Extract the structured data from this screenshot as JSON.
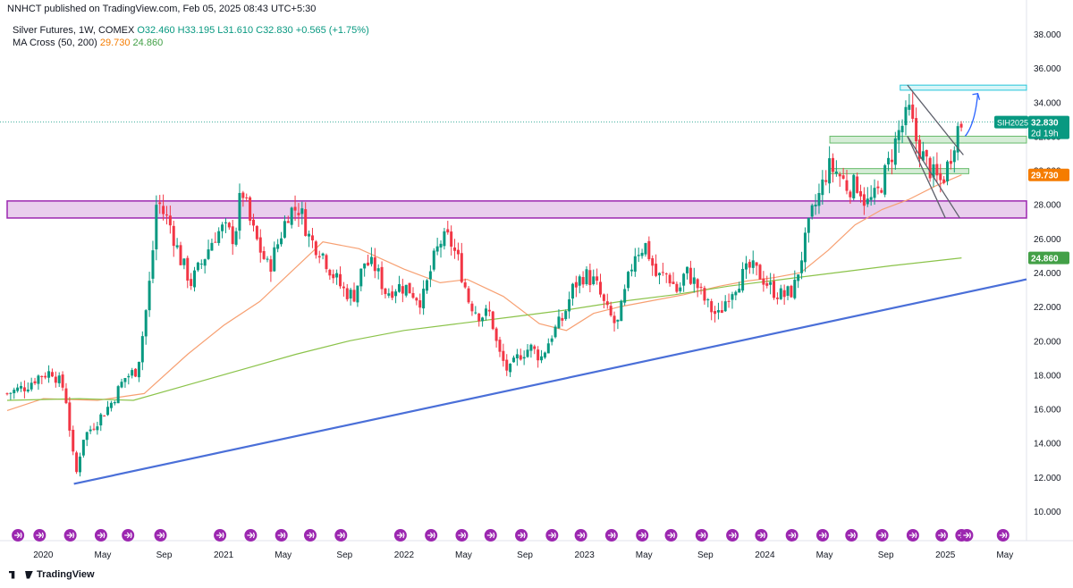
{
  "header": {
    "published": "NNHCT published on TradingView.com, Feb 05, 2025 08:43 UTC+5:30",
    "symbol_line": "Silver Futures, 1W, COMEX",
    "ohlc": {
      "o": "O32.460",
      "h": "H33.195",
      "l": "L31.610",
      "c": "C32.830",
      "change": "+0.565 (+1.75%)"
    },
    "ma_name": "MA Cross (50, 200)",
    "ma_fast": "29.730",
    "ma_slow": "24.860"
  },
  "footer": {
    "brand": "TradingView"
  },
  "colors": {
    "up": "#089981",
    "down": "#f23645",
    "ma_fast": "#f7a072",
    "ma_slow": "#8bc34a",
    "trendline": "#4a6fd8",
    "purple_zone": "#9c27b0",
    "cyan_zone": "#26c6da",
    "green_zone": "#66bb6a",
    "arrow": "#2962ff",
    "event_icon": "#9c27b0"
  },
  "chart_data": {
    "type": "candlestick",
    "title": "Silver Futures, 1W, COMEX",
    "xlabel": "",
    "ylabel": "",
    "ylim": [
      9.0,
      39.2
    ],
    "y_ticks": [
      "38.000",
      "36.000",
      "34.000",
      "32.000",
      "30.000",
      "28.000",
      "26.000",
      "24.000",
      "22.000",
      "20.000",
      "18.000",
      "16.000",
      "14.000",
      "12.000",
      "10.000"
    ],
    "x_ticks": [
      "2020",
      "May",
      "Sep",
      "2021",
      "May",
      "Sep",
      "2022",
      "May",
      "Sep",
      "2023",
      "May",
      "Sep",
      "2024",
      "May",
      "Sep",
      "2025",
      "May"
    ],
    "x_tick_dates": [
      2020.0,
      2020.33,
      2020.67,
      2021.0,
      2021.33,
      2021.67,
      2022.0,
      2022.33,
      2022.67,
      2023.0,
      2023.33,
      2023.67,
      2024.0,
      2024.33,
      2024.67,
      2025.0,
      2025.33
    ],
    "xlim": [
      2019.8,
      2025.45
    ],
    "price_path": [
      [
        2019.8,
        16.9
      ],
      [
        2019.9,
        17.3
      ],
      [
        2019.97,
        17.9
      ],
      [
        2020.05,
        18.2
      ],
      [
        2020.12,
        17.1
      ],
      [
        2020.18,
        12.0
      ],
      [
        2020.22,
        14.3
      ],
      [
        2020.3,
        15.3
      ],
      [
        2020.38,
        16.4
      ],
      [
        2020.45,
        17.8
      ],
      [
        2020.52,
        18.3
      ],
      [
        2020.56,
        21.0
      ],
      [
        2020.6,
        24.3
      ],
      [
        2020.63,
        28.4
      ],
      [
        2020.66,
        27.6
      ],
      [
        2020.7,
        26.9
      ],
      [
        2020.76,
        24.8
      ],
      [
        2020.82,
        23.4
      ],
      [
        2020.88,
        24.6
      ],
      [
        2020.95,
        26.2
      ],
      [
        2021.0,
        26.6
      ],
      [
        2021.06,
        26.0
      ],
      [
        2021.1,
        29.0
      ],
      [
        2021.15,
        26.8
      ],
      [
        2021.2,
        25.4
      ],
      [
        2021.25,
        24.2
      ],
      [
        2021.3,
        25.7
      ],
      [
        2021.36,
        27.6
      ],
      [
        2021.42,
        27.8
      ],
      [
        2021.48,
        25.9
      ],
      [
        2021.54,
        25.3
      ],
      [
        2021.6,
        24.0
      ],
      [
        2021.66,
        23.0
      ],
      [
        2021.72,
        22.6
      ],
      [
        2021.78,
        24.6
      ],
      [
        2021.84,
        24.3
      ],
      [
        2021.9,
        22.8
      ],
      [
        2021.96,
        23.2
      ],
      [
        2022.02,
        23.1
      ],
      [
        2022.1,
        22.3
      ],
      [
        2022.16,
        24.6
      ],
      [
        2022.2,
        25.8
      ],
      [
        2022.25,
        26.0
      ],
      [
        2022.3,
        24.7
      ],
      [
        2022.36,
        22.3
      ],
      [
        2022.42,
        21.5
      ],
      [
        2022.48,
        21.6
      ],
      [
        2022.52,
        19.4
      ],
      [
        2022.58,
        18.1
      ],
      [
        2022.64,
        19.2
      ],
      [
        2022.7,
        19.6
      ],
      [
        2022.76,
        19.0
      ],
      [
        2022.82,
        20.4
      ],
      [
        2022.88,
        21.3
      ],
      [
        2022.94,
        23.2
      ],
      [
        2023.0,
        23.9
      ],
      [
        2023.06,
        23.4
      ],
      [
        2023.12,
        21.8
      ],
      [
        2023.18,
        20.8
      ],
      [
        2023.22,
        22.6
      ],
      [
        2023.28,
        25.2
      ],
      [
        2023.34,
        25.6
      ],
      [
        2023.4,
        23.7
      ],
      [
        2023.46,
        23.9
      ],
      [
        2023.52,
        22.8
      ],
      [
        2023.56,
        24.1
      ],
      [
        2023.62,
        23.3
      ],
      [
        2023.68,
        22.1
      ],
      [
        2023.74,
        21.4
      ],
      [
        2023.8,
        22.8
      ],
      [
        2023.86,
        23.6
      ],
      [
        2023.92,
        24.3
      ],
      [
        2023.98,
        23.8
      ],
      [
        2024.04,
        23.0
      ],
      [
        2024.1,
        22.6
      ],
      [
        2024.16,
        23.0
      ],
      [
        2024.2,
        24.8
      ],
      [
        2024.26,
        27.4
      ],
      [
        2024.3,
        28.5
      ],
      [
        2024.35,
        30.2
      ],
      [
        2024.4,
        29.9
      ],
      [
        2024.46,
        29.0
      ],
      [
        2024.52,
        29.2
      ],
      [
        2024.56,
        28.0
      ],
      [
        2024.62,
        28.5
      ],
      [
        2024.68,
        30.2
      ],
      [
        2024.74,
        32.2
      ],
      [
        2024.8,
        33.4
      ],
      [
        2024.84,
        31.7
      ],
      [
        2024.88,
        30.7
      ],
      [
        2024.94,
        29.6
      ],
      [
        2024.98,
        29.3
      ],
      [
        2025.02,
        30.5
      ],
      [
        2025.06,
        32.3
      ],
      [
        2025.09,
        32.8
      ]
    ],
    "series": [
      {
        "name": "MA 50",
        "values_path": [
          [
            2019.8,
            15.9
          ],
          [
            2020.0,
            16.6
          ],
          [
            2020.3,
            16.5
          ],
          [
            2020.56,
            16.9
          ],
          [
            2020.8,
            19.2
          ],
          [
            2021.0,
            20.9
          ],
          [
            2021.2,
            22.3
          ],
          [
            2021.4,
            24.3
          ],
          [
            2021.55,
            25.8
          ],
          [
            2021.75,
            25.4
          ],
          [
            2022.0,
            24.2
          ],
          [
            2022.2,
            23.4
          ],
          [
            2022.35,
            23.6
          ],
          [
            2022.55,
            22.6
          ],
          [
            2022.75,
            21.0
          ],
          [
            2022.9,
            20.6
          ],
          [
            2023.05,
            21.6
          ],
          [
            2023.2,
            22.0
          ],
          [
            2023.4,
            22.4
          ],
          [
            2023.55,
            22.7
          ],
          [
            2023.75,
            23.2
          ],
          [
            2023.9,
            23.5
          ],
          [
            2024.05,
            23.7
          ],
          [
            2024.2,
            24.0
          ],
          [
            2024.35,
            25.3
          ],
          [
            2024.5,
            26.8
          ],
          [
            2024.65,
            27.7
          ],
          [
            2024.8,
            28.3
          ],
          [
            2024.95,
            29.1
          ],
          [
            2025.09,
            29.73
          ]
        ]
      },
      {
        "name": "MA 200",
        "values_path": [
          [
            2019.8,
            16.5
          ],
          [
            2020.2,
            16.6
          ],
          [
            2020.5,
            16.5
          ],
          [
            2020.8,
            17.4
          ],
          [
            2021.1,
            18.3
          ],
          [
            2021.4,
            19.2
          ],
          [
            2021.7,
            20.0
          ],
          [
            2022.0,
            20.6
          ],
          [
            2022.3,
            21.0
          ],
          [
            2022.6,
            21.4
          ],
          [
            2022.9,
            21.8
          ],
          [
            2023.2,
            22.3
          ],
          [
            2023.5,
            22.7
          ],
          [
            2023.8,
            23.2
          ],
          [
            2024.1,
            23.6
          ],
          [
            2024.4,
            24.0
          ],
          [
            2024.7,
            24.4
          ],
          [
            2025.09,
            24.86
          ]
        ]
      }
    ],
    "levels": {
      "last": "32.830",
      "countdown": "2d 19h",
      "ticker": "SIH2025",
      "ma_fast": "29.730",
      "ma_slow": "24.860",
      "current_line": 32.83
    },
    "zones": [
      {
        "name": "purple",
        "low": 27.2,
        "high": 28.2,
        "x0": 2019.8,
        "x1": 2025.45
      },
      {
        "name": "cyan",
        "low": 34.7,
        "high": 35.0,
        "x0": 2024.75,
        "x1": 2025.45
      },
      {
        "name": "green-upper",
        "low": 31.6,
        "high": 32.0,
        "x0": 2024.36,
        "x1": 2025.45
      },
      {
        "name": "green-lower",
        "low": 29.8,
        "high": 30.1,
        "x0": 2024.36,
        "x1": 2025.13
      }
    ],
    "trendline": [
      [
        2020.17,
        11.6
      ],
      [
        2025.45,
        23.6
      ]
    ],
    "falling_wedge": [
      [
        [
          2024.79,
          35.0
        ],
        [
          2025.1,
          30.9
        ]
      ],
      [
        [
          2024.79,
          32.0
        ],
        [
          2025.0,
          27.2
        ]
      ]
    ],
    "arrow": [
      [
        2025.11,
        32.0
      ],
      [
        2025.18,
        34.5
      ]
    ]
  }
}
